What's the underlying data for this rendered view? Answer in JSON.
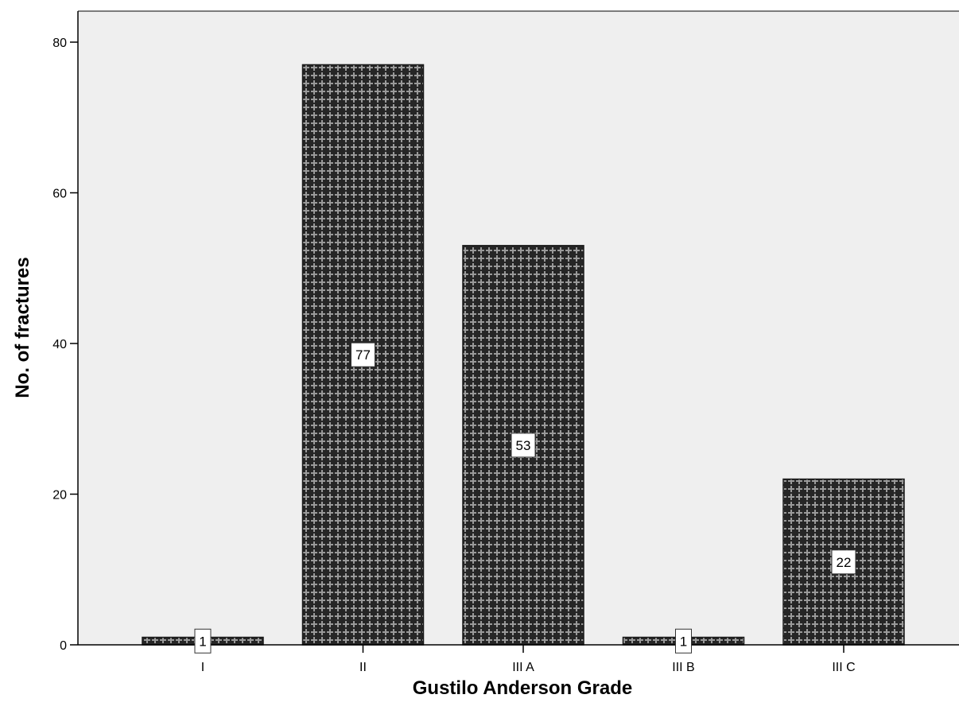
{
  "chart_data": {
    "type": "bar",
    "title": "",
    "xlabel": "Gustilo Anderson Grade",
    "ylabel": "No. of fractures",
    "categories": [
      "I",
      "II",
      "III A",
      "III B",
      "III C"
    ],
    "values": [
      1,
      77,
      53,
      1,
      22
    ],
    "data_labels": [
      "1",
      "77",
      "53",
      "1",
      "22"
    ],
    "ylim": [
      0,
      80
    ],
    "yticks": [
      0,
      20,
      40,
      60,
      80
    ],
    "ytick_labels": [
      "0",
      "20",
      "40",
      "60",
      "80"
    ],
    "grid": false,
    "legend": "none"
  },
  "colors": {
    "plot_background": "#efefef",
    "bar_fill": "#262626",
    "bar_pattern": "#9a9a9a",
    "axis": "#000000"
  }
}
